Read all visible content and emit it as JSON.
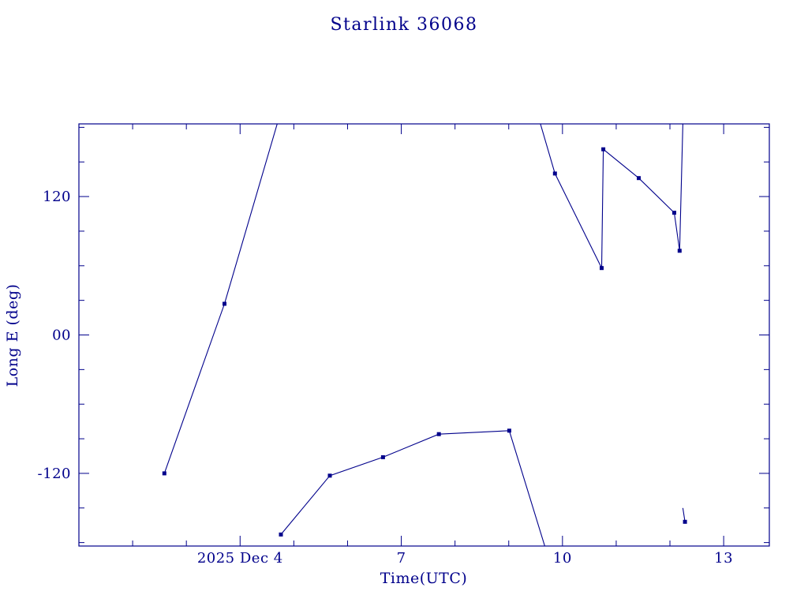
{
  "chart_data": {
    "type": "line",
    "title": "Starlink 36068",
    "xlabel": "Time(UTC)",
    "ylabel": "Long E (deg)",
    "color": "#00008b",
    "background": "#ffffff",
    "grid": false,
    "legend": null,
    "marker": "filled-square",
    "x_unit": "day of 2025 Dec",
    "xlim": [
      1.0,
      13.85
    ],
    "ylim": [
      -183,
      183
    ],
    "x_ticks": {
      "major": [
        4,
        7,
        10,
        13
      ],
      "labels": [
        "2025 Dec 4",
        "7",
        "10",
        "13"
      ],
      "minor": [
        2,
        3,
        5,
        6,
        8,
        9,
        11,
        12
      ]
    },
    "y_ticks": {
      "major": [
        -120,
        0,
        120
      ],
      "labels": [
        "-120",
        "00",
        "120"
      ],
      "minor": [
        -180,
        -150,
        -90,
        -60,
        -30,
        30,
        60,
        90,
        150,
        180
      ]
    },
    "series": [
      {
        "name": "track-segment-1",
        "points": [
          [
            2.59,
            -120,
            1
          ],
          [
            3.71,
            27,
            1
          ],
          [
            4.69,
            183,
            0
          ]
        ]
      },
      {
        "name": "track-segment-2",
        "points": [
          [
            4.76,
            -173,
            1
          ],
          [
            5.67,
            -122,
            1
          ],
          [
            6.66,
            -106,
            1
          ],
          [
            7.7,
            -86,
            1
          ],
          [
            9.01,
            -83,
            1
          ],
          [
            9.67,
            -183,
            0
          ]
        ]
      },
      {
        "name": "track-segment-3",
        "points": [
          [
            9.59,
            183,
            0
          ],
          [
            9.86,
            140,
            1
          ],
          [
            10.73,
            58,
            1
          ],
          [
            10.76,
            161,
            1
          ],
          [
            11.42,
            136,
            1
          ],
          [
            12.08,
            106,
            1
          ],
          [
            12.18,
            73,
            1
          ],
          [
            12.24,
            183,
            0
          ]
        ]
      },
      {
        "name": "track-segment-4",
        "points": [
          [
            12.24,
            -150,
            0
          ],
          [
            12.28,
            -162,
            1
          ]
        ]
      }
    ]
  }
}
